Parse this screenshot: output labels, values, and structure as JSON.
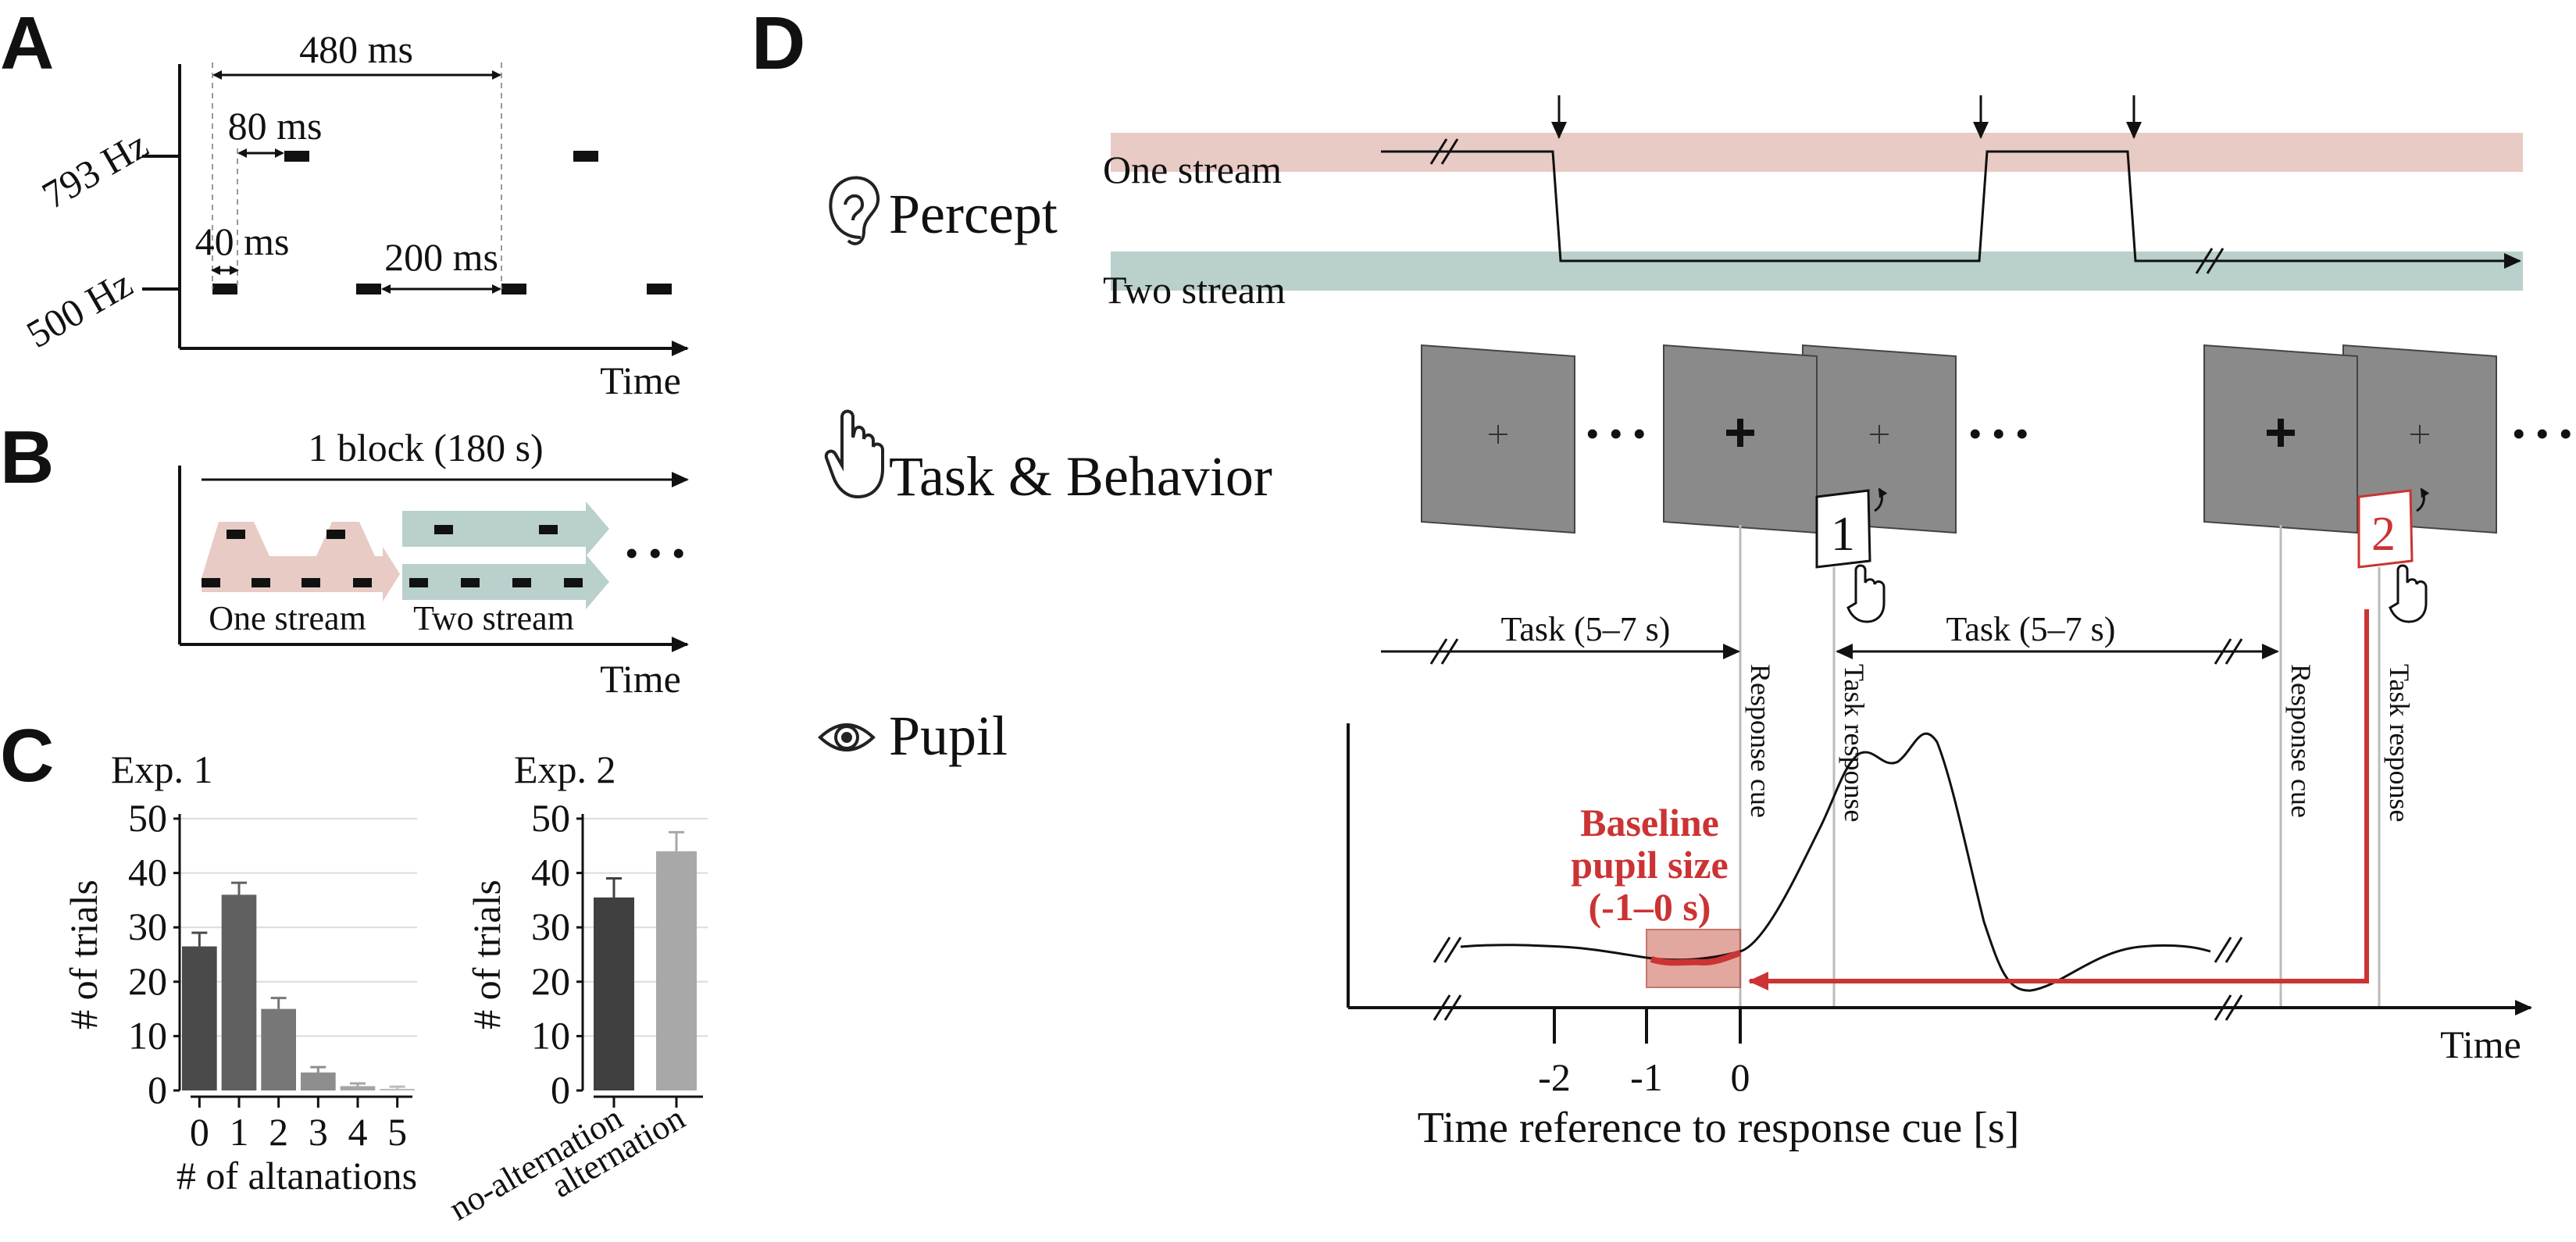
{
  "panels": {
    "A": {
      "letter": "A",
      "freq_high": "793 Hz",
      "freq_low": "500 Hz",
      "dur_480": "480 ms",
      "dur_80": "80 ms",
      "dur_40": "40 ms",
      "dur_200": "200 ms",
      "axis_label": "Time"
    },
    "B": {
      "letter": "B",
      "block_label": "1 block (180 s)",
      "one_stream": "One stream",
      "two_stream": "Two stream",
      "ellipsis": "• • •",
      "axis_label": "Time"
    },
    "C": {
      "letter": "C",
      "exp1_title": "Exp. 1",
      "exp2_title": "Exp. 2",
      "ylabel": "# of trials",
      "exp1_xlabel": "# of altanations",
      "yticks": [
        "0",
        "10",
        "20",
        "30",
        "40",
        "50"
      ]
    },
    "D": {
      "letter": "D",
      "percept_label": "Percept",
      "task_label": "Task & Behavior",
      "pupil_label": "Pupil",
      "one_stream": "One stream",
      "two_stream": "Two stream",
      "task_duration_1": "Task (5–7 s)",
      "task_duration_2": "Task (5–7 s)",
      "response_cue": "Response cue",
      "task_response": "Task response",
      "baseline_line1": "Baseline",
      "baseline_line2": "pupil size",
      "baseline_line3": "(-1–0 s)",
      "response_1": "1",
      "response_2": "2",
      "ellipsis": "• • •",
      "xticks": [
        "-2",
        "-1",
        "0"
      ],
      "time_label": "Time",
      "xaxis_label": "Time reference to response cue [s]",
      "colors": {
        "one_stream_band": "#e8cbc5",
        "two_stream_band": "#b9d0cd",
        "baseline_highlight": "#cc3333",
        "screen_gray": "#8a8a8a"
      },
      "icons": [
        "ear-icon",
        "hand-pointer-icon",
        "eye-icon"
      ]
    }
  },
  "chart_data": [
    {
      "type": "bar",
      "title": "Exp. 1",
      "xlabel": "# of altanations",
      "ylabel": "# of trials",
      "ylim": [
        0,
        50
      ],
      "grid": true,
      "categories": [
        "0",
        "1",
        "2",
        "3",
        "4",
        "5"
      ],
      "values": [
        26.5,
        36,
        15,
        3.3,
        0.8,
        0.3
      ],
      "errors": [
        2.5,
        2.2,
        2.0,
        1.0,
        0.5,
        0.4
      ],
      "colors": [
        "#4a4a4a",
        "#606060",
        "#777777",
        "#8e8e8e",
        "#a5a5a5",
        "#bcbcbc"
      ]
    },
    {
      "type": "bar",
      "title": "Exp. 2",
      "xlabel": "",
      "ylabel": "# of trials",
      "ylim": [
        0,
        50
      ],
      "grid": true,
      "categories": [
        "no-alternation",
        "alternation"
      ],
      "values": [
        35.5,
        44
      ],
      "errors": [
        3.5,
        3.5
      ],
      "colors": [
        "#404040",
        "#a8a8a8"
      ]
    }
  ]
}
